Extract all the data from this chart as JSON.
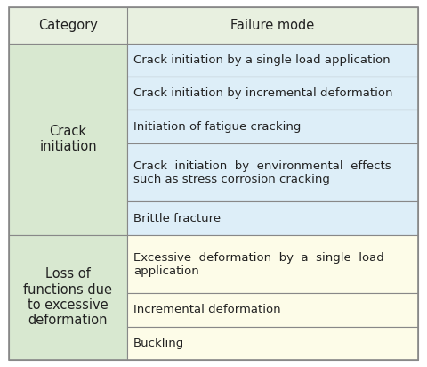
{
  "header": [
    "Category",
    "Failure mode"
  ],
  "header_bg": "#e8f0e0",
  "section1_category": "Crack\ninitiation",
  "section1_bg": "#d8e8d0",
  "section1_rows": [
    "Crack initiation by a single load application",
    "Crack initiation by incremental deformation",
    "Initiation of fatigue cracking",
    "Crack  initiation  by  environmental  effects\nsuch as stress corrosion cracking",
    "Brittle fracture"
  ],
  "section1_row_bg": "#ddeef8",
  "section2_category": "Loss of\nfunctions due\nto excessive\ndeformation",
  "section2_bg": "#d8e8d0",
  "section2_rows": [
    "Excessive  deformation  by  a  single  load\napplication",
    "Incremental deformation",
    "Buckling"
  ],
  "section2_row_bg": "#fdfce8",
  "border_color": "#888888",
  "text_color": "#222222",
  "font_size": 9.5,
  "header_font_size": 10.5
}
